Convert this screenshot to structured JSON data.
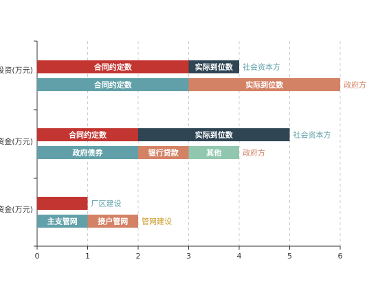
{
  "chart_data": {
    "type": "bar",
    "orientation": "horizontal",
    "stacked": true,
    "xlim": [
      0,
      6
    ],
    "x_ticks": [
      "0",
      "1",
      "2",
      "3",
      "4",
      "5",
      "6"
    ],
    "grid": "vertical-dashed",
    "categories": [
      "投资(万元)",
      "资金(万元)",
      "资金(万元)"
    ],
    "rows": [
      {
        "category_index": 0,
        "segments": [
          {
            "label": "合同约定数",
            "value": 3,
            "color": "#c23531"
          },
          {
            "label": "实际到位数",
            "value": 1,
            "color": "#2f4554"
          }
        ],
        "end_label": "社会资本方",
        "end_label_color": "#61a0a8"
      },
      {
        "category_index": 0,
        "segments": [
          {
            "label": "合同约定数",
            "value": 3,
            "color": "#61a0a8"
          },
          {
            "label": "实际到位数",
            "value": 3,
            "color": "#d48265"
          }
        ],
        "end_label": "政府方",
        "end_label_color": "#d48265"
      },
      {
        "category_index": 1,
        "segments": [
          {
            "label": "合同约定数",
            "value": 2,
            "color": "#c23531"
          },
          {
            "label": "实际到位数",
            "value": 3,
            "color": "#2f4554"
          }
        ],
        "end_label": "社会资本方",
        "end_label_color": "#61a0a8"
      },
      {
        "category_index": 1,
        "segments": [
          {
            "label": "政府债券",
            "value": 2,
            "color": "#61a0a8"
          },
          {
            "label": "银行贷款",
            "value": 1,
            "color": "#d48265"
          },
          {
            "label": "其他",
            "value": 1,
            "color": "#91c7ae"
          }
        ],
        "end_label": "政府方",
        "end_label_color": "#d48265"
      },
      {
        "category_index": 2,
        "segments": [
          {
            "label": "",
            "value": 1,
            "color": "#c23531"
          }
        ],
        "end_label": "厂区建设",
        "end_label_color": "#61a0a8"
      },
      {
        "category_index": 2,
        "segments": [
          {
            "label": "主支管网",
            "value": 1,
            "color": "#61a0a8"
          },
          {
            "label": "接户管网",
            "value": 1,
            "color": "#d48265"
          }
        ],
        "end_label": "管网建设",
        "end_label_color": "#c79a21"
      }
    ]
  }
}
